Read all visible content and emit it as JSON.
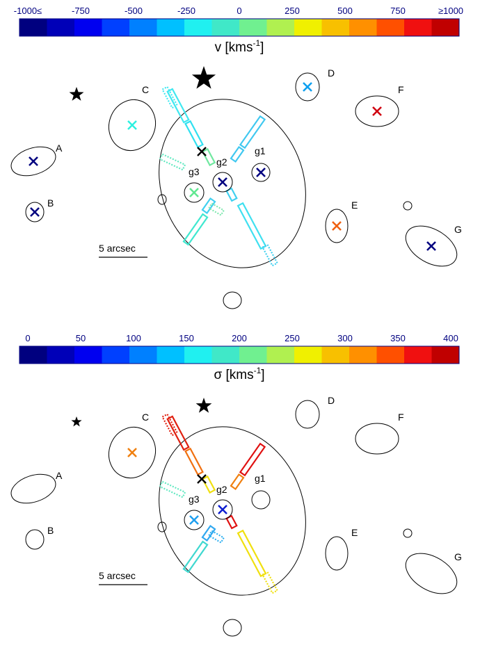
{
  "panels": [
    {
      "id": "velocity",
      "colorbar": {
        "ticks": [
          "-1000≤",
          "-750",
          "-500",
          "-250",
          "0",
          "250",
          "500",
          "750",
          "≥1000"
        ],
        "title": "v [kms",
        "title_sup": "-1",
        "title_end": "]"
      },
      "objects": [
        {
          "name": "A",
          "color": "#00007f",
          "has_x": true
        },
        {
          "name": "B",
          "color": "#00007f",
          "has_x": true
        },
        {
          "name": "C",
          "color": "#2ff0e0",
          "has_x": true
        },
        {
          "name": "D",
          "color": "#0ea0f0",
          "has_x": true
        },
        {
          "name": "E",
          "color": "#f06010",
          "has_x": true
        },
        {
          "name": "F",
          "color": "#d00010",
          "has_x": true
        },
        {
          "name": "G",
          "color": "#00007f",
          "has_x": true
        },
        {
          "name": "g1",
          "color": "#00007f",
          "has_x": true
        },
        {
          "name": "g2",
          "color": "#00007f",
          "has_x": true
        },
        {
          "name": "g3",
          "color": "#60e890",
          "has_x": true
        }
      ],
      "slit_segment_colors": {
        "ul_outer": "#40e8f0",
        "ul_mid": "#30e0f0",
        "ul_inner": "#70e8a0",
        "ur_outer": "#40c8f0",
        "ur_inner": "#40c8f0",
        "ll_outer": "#40e8d0",
        "ll_inner": "#40d0f0",
        "lr_inner": "#40d0f0",
        "lr_outer": "#40e0f0",
        "dotted_a": "#60e8c0",
        "dotted_b": "#80e8b0",
        "dotted_c": "#40d0f0"
      },
      "scale_label": "5 arcsec"
    },
    {
      "id": "dispersion",
      "colorbar": {
        "ticks": [
          "0",
          "50",
          "100",
          "150",
          "200",
          "250",
          "300",
          "350",
          "400"
        ],
        "title": "σ [kms",
        "title_sup": "-1",
        "title_end": "]"
      },
      "objects": [
        {
          "name": "A",
          "color": "#000000",
          "has_x": false
        },
        {
          "name": "B",
          "color": "#000000",
          "has_x": false
        },
        {
          "name": "C",
          "color": "#f08010",
          "has_x": true
        },
        {
          "name": "D",
          "color": "#000000",
          "has_x": false
        },
        {
          "name": "E",
          "color": "#000000",
          "has_x": false
        },
        {
          "name": "F",
          "color": "#000000",
          "has_x": false
        },
        {
          "name": "G",
          "color": "#000000",
          "has_x": false
        },
        {
          "name": "g1",
          "color": "#000000",
          "has_x": false
        },
        {
          "name": "g2",
          "color": "#1020d0",
          "has_x": true
        },
        {
          "name": "g3",
          "color": "#20a0f0",
          "has_x": true
        }
      ],
      "slit_segment_colors": {
        "ul_outer": "#e02010",
        "ul_mid": "#f07010",
        "ul_inner": "#f0e010",
        "ur_outer": "#e01010",
        "ur_inner": "#f08010",
        "ll_outer": "#40d8d0",
        "ll_inner": "#30a8f0",
        "lr_inner": "#e01010",
        "lr_outer": "#f0e010",
        "dotted_a": "#60e8c0",
        "dotted_b": "#30b0f0",
        "dotted_c": "#f0e010"
      },
      "scale_label": "5 arcsec"
    }
  ],
  "colormap": [
    "#00007f",
    "#0000b8",
    "#0000f0",
    "#0040ff",
    "#0080ff",
    "#00c0ff",
    "#20f0f0",
    "#40e8c8",
    "#70f090",
    "#b0f050",
    "#f0f000",
    "#f8c000",
    "#ff9000",
    "#ff5000",
    "#f01010",
    "#c00000"
  ]
}
